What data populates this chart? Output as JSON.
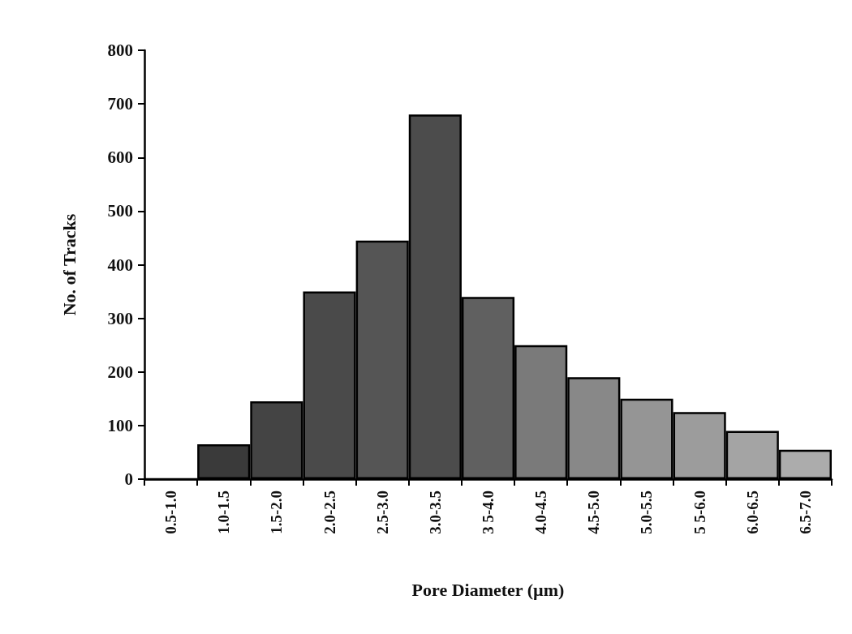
{
  "chart_data": {
    "type": "bar",
    "xlabel": "Pore Diameter (µm)",
    "ylabel": "No. of Tracks",
    "categories": [
      "0.5-1.0",
      "1.0-1.5",
      "1.5-2.0",
      "2.0-2.5",
      "2.5-3.0",
      "3.0-3.5",
      "3 5-4.0",
      "4.0-4.5",
      "4.5-5.0",
      "5.0-5.5",
      "5 5-6.0",
      "6.0-6.5",
      "6.5-7.0"
    ],
    "values": [
      0,
      65,
      145,
      350,
      445,
      680,
      340,
      250,
      190,
      150,
      125,
      90,
      55
    ],
    "colors": [
      "#3a3a3a",
      "#3a3a3a",
      "#444444",
      "#4a4a4a",
      "#555555",
      "#4c4c4c",
      "#606060",
      "#7a7a7a",
      "#888888",
      "#959595",
      "#9c9c9c",
      "#a4a4a4",
      "#acacac"
    ],
    "ylim": [
      0,
      800
    ],
    "yticks": [
      0,
      100,
      200,
      300,
      400,
      500,
      600,
      700,
      800
    ],
    "grid": false
  }
}
